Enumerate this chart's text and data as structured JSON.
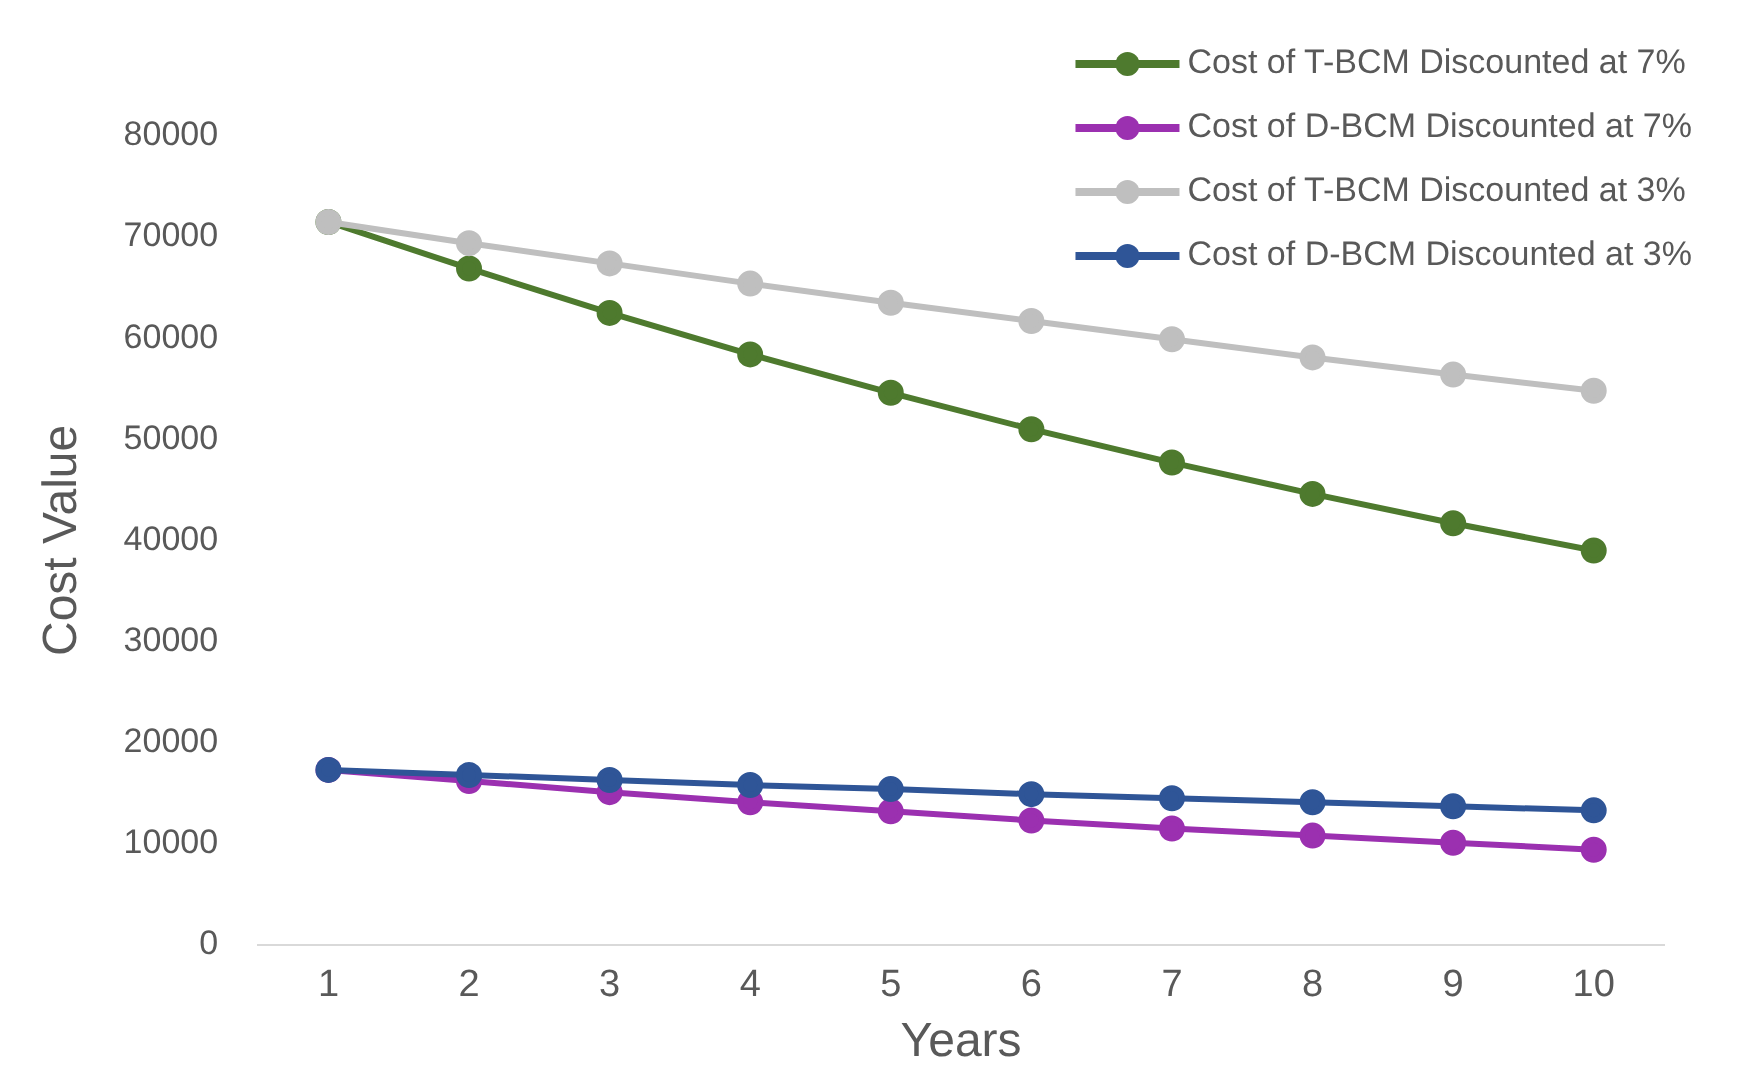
{
  "chart_data": {
    "type": "line",
    "xlabel": "Years",
    "ylabel": "Cost Value",
    "categories": [
      "1",
      "2",
      "3",
      "4",
      "5",
      "6",
      "7",
      "8",
      "9",
      "10"
    ],
    "series": [
      {
        "name": "Cost of T-BCM Discounted at 7%",
        "color": "#4e7a2e",
        "values": [
          71500,
          66900,
          62500,
          58400,
          54600,
          51000,
          47700,
          44600,
          41700,
          39000
        ]
      },
      {
        "name": "Cost of D-BCM Discounted at 7%",
        "color": "#9b30b0",
        "values": [
          17300,
          16200,
          15100,
          14100,
          13200,
          12300,
          11500,
          10800,
          10100,
          9400
        ]
      },
      {
        "name": "Cost of T-BCM Discounted at 3%",
        "color": "#bfbfbf",
        "values": [
          71500,
          69400,
          67400,
          65400,
          63500,
          61700,
          59900,
          58100,
          56400,
          54800
        ]
      },
      {
        "name": "Cost of D-BCM Discounted at 3%",
        "color": "#2f5597",
        "values": [
          17300,
          16800,
          16300,
          15800,
          15400,
          14900,
          14500,
          14100,
          13700,
          13300
        ]
      }
    ],
    "ylim": [
      0,
      80000
    ],
    "yticks": [
      0,
      10000,
      20000,
      30000,
      40000,
      50000,
      60000,
      70000,
      80000
    ],
    "grid": false,
    "legend": "top right",
    "marker": "circle",
    "line_style": "solid"
  }
}
